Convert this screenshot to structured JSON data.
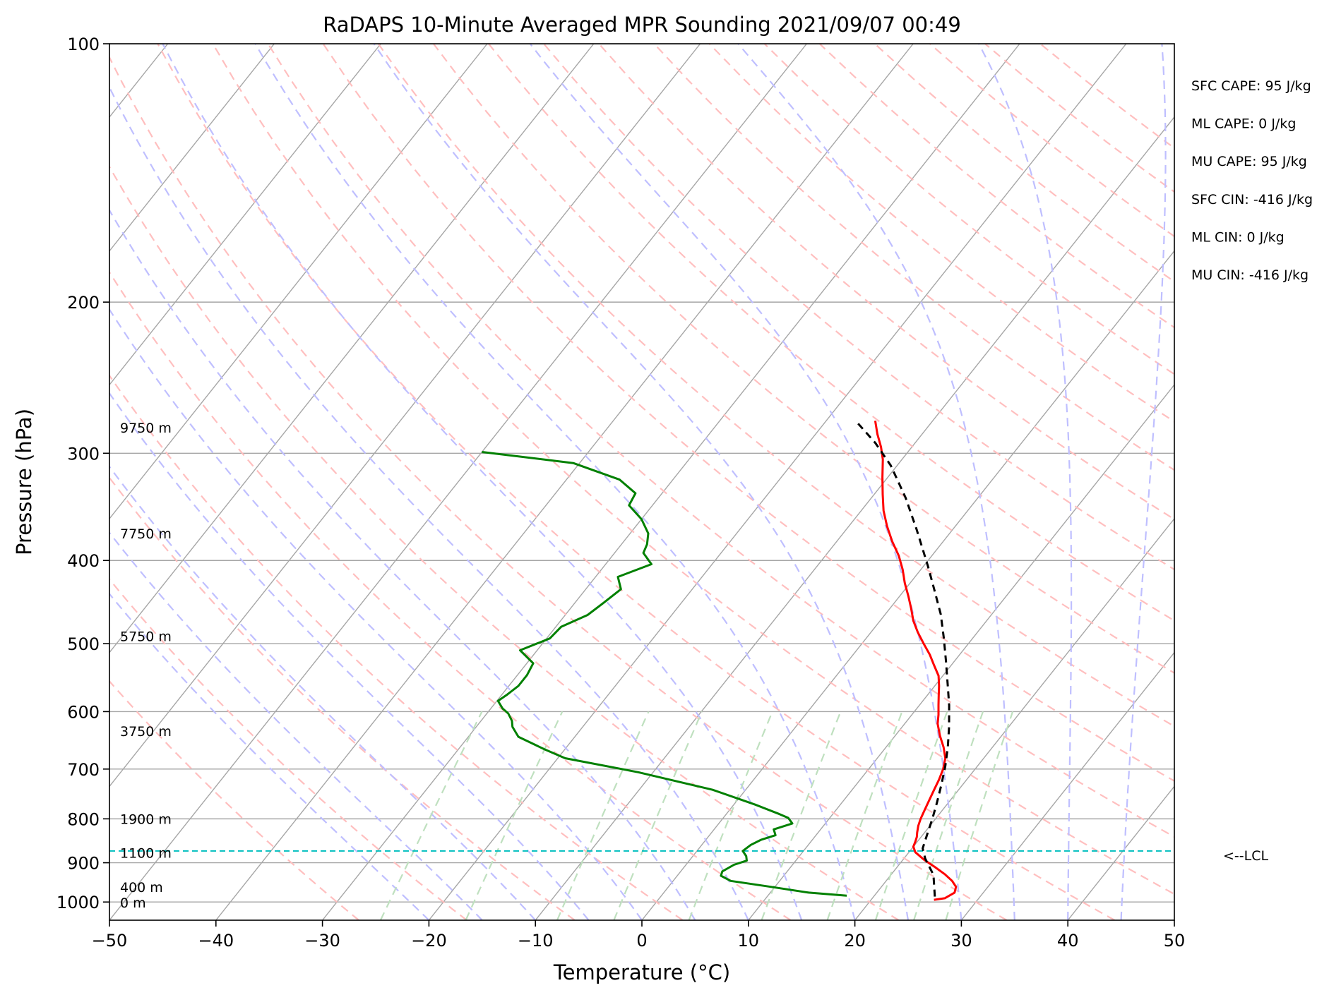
{
  "chart_data": {
    "type": "skew-t",
    "title": "RaDAPS 10-Minute Averaged MPR Sounding 2021/09/07 00:49",
    "xlabel": "Temperature (°C)",
    "ylabel": "Pressure (hPa)",
    "xlim": [
      -50,
      50
    ],
    "ylim": [
      1050,
      100
    ],
    "y_scale": "log",
    "x_ticks": [
      "−50",
      "−40",
      "−30",
      "−20",
      "−10",
      "0",
      "10",
      "20",
      "30",
      "40",
      "50"
    ],
    "x_tick_values": [
      -50,
      -40,
      -30,
      -20,
      -10,
      0,
      10,
      20,
      30,
      40,
      50
    ],
    "y_ticks": [
      "100",
      "200",
      "300",
      "400",
      "500",
      "600",
      "700",
      "800",
      "900",
      "1000"
    ],
    "y_tick_values": [
      100,
      200,
      300,
      400,
      500,
      600,
      700,
      800,
      900,
      1000
    ],
    "grid": true,
    "colors": {
      "temperature": "#ff0000",
      "dewpoint": "#008000",
      "parcel": "#000000",
      "lcl": "#00bfbf",
      "dry_adiabats": "#ffbfbf",
      "moist_adiabats": "#bfbfff",
      "mixing_ratio": "#bfe0bf",
      "isotherms": "#a6a6a6"
    },
    "series": [
      {
        "key": "temperature",
        "points": [
          [
            -15.4,
            275
          ],
          [
            -14.2,
            285
          ],
          [
            -12.9,
            295
          ],
          [
            -11.8,
            305
          ],
          [
            -10.5,
            320
          ],
          [
            -9.2,
            335
          ],
          [
            -7.9,
            350
          ],
          [
            -6.4,
            365
          ],
          [
            -4.8,
            380
          ],
          [
            -3.1,
            395
          ],
          [
            -1.7,
            410
          ],
          [
            -0.5,
            425
          ],
          [
            0.8,
            440
          ],
          [
            2.0,
            455
          ],
          [
            3.1,
            470
          ],
          [
            4.4,
            485
          ],
          [
            5.8,
            500
          ],
          [
            7.2,
            515
          ],
          [
            8.4,
            530
          ],
          [
            9.6,
            545
          ],
          [
            10.4,
            560
          ],
          [
            11.1,
            575
          ],
          [
            11.8,
            590
          ],
          [
            12.5,
            605
          ],
          [
            13.1,
            620
          ],
          [
            14.2,
            640
          ],
          [
            15.4,
            660
          ],
          [
            16.4,
            680
          ],
          [
            17.0,
            700
          ],
          [
            17.4,
            720
          ],
          [
            17.7,
            740
          ],
          [
            18.0,
            760
          ],
          [
            18.3,
            780
          ],
          [
            18.6,
            800
          ],
          [
            18.9,
            815
          ],
          [
            19.3,
            830
          ],
          [
            19.6,
            840
          ],
          [
            19.8,
            850
          ],
          [
            20.0,
            862
          ],
          [
            20.6,
            875
          ],
          [
            22.0,
            893
          ],
          [
            23.5,
            910
          ],
          [
            25.0,
            928
          ],
          [
            26.2,
            945
          ],
          [
            27.0,
            960
          ],
          [
            27.3,
            975
          ],
          [
            26.8,
            990
          ],
          [
            25.9,
            994
          ]
        ]
      },
      {
        "key": "dewpoint",
        "points": [
          [
            -50.0,
            299
          ],
          [
            -40.6,
            308
          ],
          [
            -35.0,
            322
          ],
          [
            -32.5,
            334
          ],
          [
            -32.2,
            345
          ],
          [
            -30.0,
            358
          ],
          [
            -28.3,
            372
          ],
          [
            -27.6,
            383
          ],
          [
            -27.3,
            392
          ],
          [
            -25.7,
            404
          ],
          [
            -27.9,
            418
          ],
          [
            -26.7,
            432
          ],
          [
            -27.3,
            448
          ],
          [
            -27.9,
            463
          ],
          [
            -29.5,
            478
          ],
          [
            -29.7,
            493
          ],
          [
            -31.6,
            509
          ],
          [
            -29.4,
            527
          ],
          [
            -29.1,
            544
          ],
          [
            -29.1,
            560
          ],
          [
            -29.5,
            573
          ],
          [
            -29.9,
            583
          ],
          [
            -28.9,
            595
          ],
          [
            -28.0,
            603
          ],
          [
            -27.1,
            615
          ],
          [
            -26.6,
            625
          ],
          [
            -25.3,
            642
          ],
          [
            -21.9,
            664
          ],
          [
            -19.3,
            680
          ],
          [
            -11.4,
            706
          ],
          [
            -3.1,
            740
          ],
          [
            2.0,
            770
          ],
          [
            5.0,
            790
          ],
          [
            6.1,
            798
          ],
          [
            6.9,
            810
          ],
          [
            5.6,
            823
          ],
          [
            6.2,
            836
          ],
          [
            5.2,
            846
          ],
          [
            4.6,
            858
          ],
          [
            4.3,
            872
          ],
          [
            5.0,
            884
          ],
          [
            5.4,
            895
          ],
          [
            4.5,
            905
          ],
          [
            3.9,
            921
          ],
          [
            4.1,
            932
          ],
          [
            5.4,
            945
          ],
          [
            9.6,
            960
          ],
          [
            13.6,
            975
          ],
          [
            17.4,
            983
          ]
        ]
      },
      {
        "key": "parcel",
        "points": [
          [
            -16.8,
            277
          ],
          [
            -13.7,
            292
          ],
          [
            -10.6,
            310
          ],
          [
            -6.8,
            338
          ],
          [
            -3.4,
            368
          ],
          [
            0.4,
            406
          ],
          [
            2.8,
            433
          ],
          [
            5.2,
            462
          ],
          [
            7.3,
            493
          ],
          [
            9.2,
            524
          ],
          [
            11.0,
            556
          ],
          [
            12.8,
            590
          ],
          [
            14.4,
            625
          ],
          [
            15.8,
            660
          ],
          [
            17.0,
            695
          ],
          [
            18.0,
            730
          ],
          [
            18.9,
            765
          ],
          [
            19.7,
            800
          ],
          [
            20.4,
            835
          ],
          [
            21.0,
            866
          ],
          [
            22.0,
            890
          ],
          [
            24.0,
            930
          ],
          [
            26.0,
            994
          ]
        ]
      }
    ],
    "lcl": {
      "pressure": 872,
      "label": "<--LCL"
    },
    "height_labels": [
      {
        "text": "9750 m",
        "pressure": 280
      },
      {
        "text": "7750 m",
        "pressure": 372
      },
      {
        "text": "5750 m",
        "pressure": 490
      },
      {
        "text": "3750 m",
        "pressure": 632
      },
      {
        "text": "1900 m",
        "pressure": 800
      },
      {
        "text": "1100 m",
        "pressure": 876
      },
      {
        "text": "400 m",
        "pressure": 961
      },
      {
        "text": "0 m",
        "pressure": 1001
      }
    ],
    "indices": [
      "SFC CAPE: 95 J/kg",
      "ML CAPE: 0 J/kg",
      "MU CAPE: 95 J/kg",
      "SFC CIN: -416 J/kg",
      "ML CIN: 0 J/kg",
      "MU CIN: -416 J/kg"
    ]
  }
}
